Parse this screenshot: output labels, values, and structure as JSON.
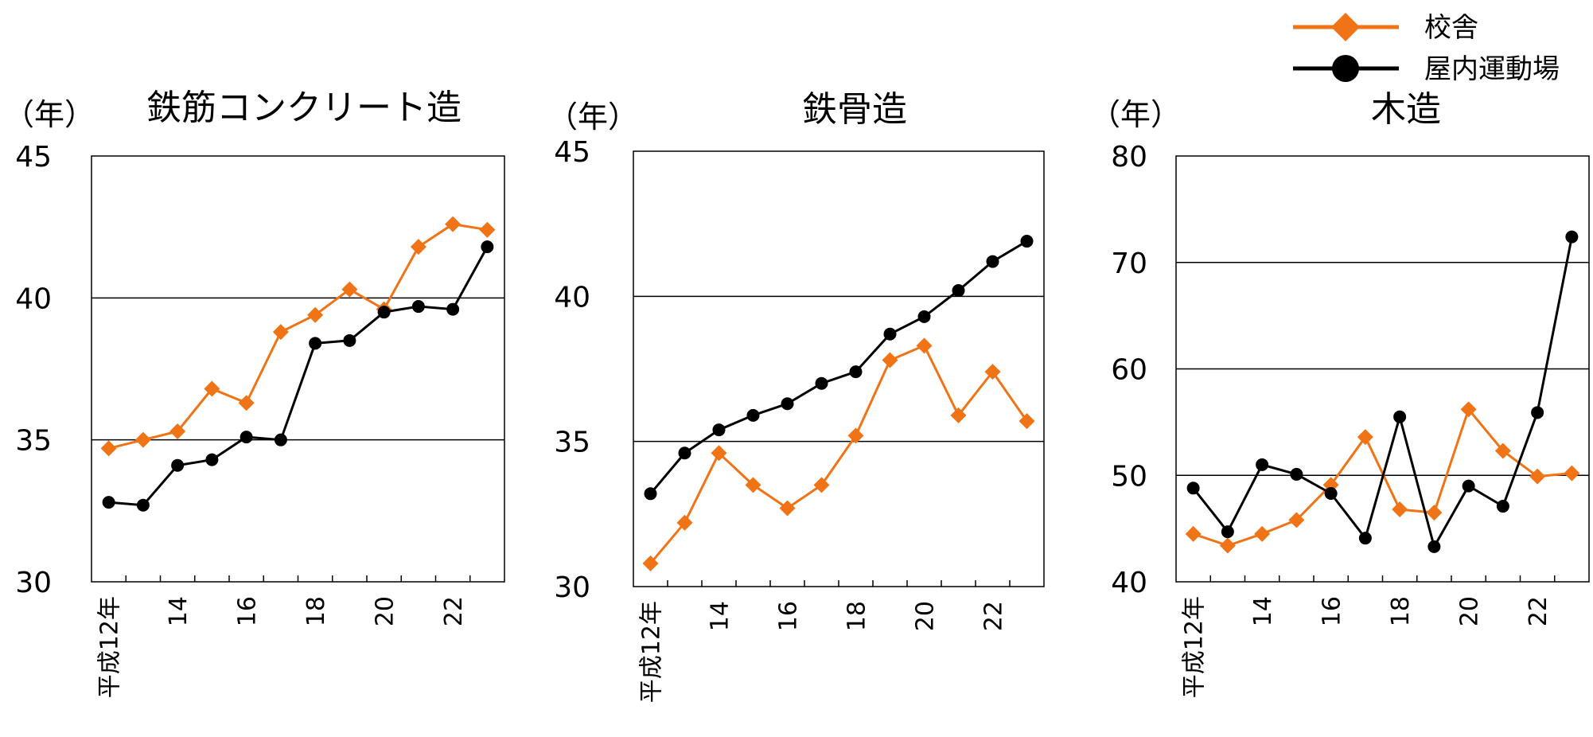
{
  "legend": {
    "position": "top-right",
    "items": [
      {
        "label": "校舎",
        "color": "#F07316",
        "marker": "diamond"
      },
      {
        "label": "屋内運動場",
        "color": "#000000",
        "marker": "circle"
      }
    ]
  },
  "chart_data": [
    {
      "type": "line",
      "title": "鉄筋コンクリート造",
      "ylabel": "（年）",
      "ylim": [
        30,
        45
      ],
      "yticks": [
        "30",
        "35",
        "40",
        "45"
      ],
      "x": [
        "平成12年",
        "13",
        "14",
        "15",
        "16",
        "17",
        "18",
        "19",
        "20",
        "21",
        "22",
        "23"
      ],
      "xtick_labels": [
        "平成12年",
        "",
        "14",
        "",
        "16",
        "",
        "18",
        "",
        "20",
        "",
        "22",
        ""
      ],
      "grid": true,
      "series": [
        {
          "name": "校舎",
          "color": "#F07316",
          "marker": "diamond",
          "values": [
            34.7,
            35.0,
            35.3,
            36.8,
            36.3,
            38.8,
            39.4,
            40.3,
            39.6,
            41.8,
            42.6,
            42.4
          ]
        },
        {
          "name": "屋内運動場",
          "color": "#000000",
          "marker": "circle",
          "values": [
            32.8,
            32.7,
            34.1,
            34.3,
            35.1,
            35.0,
            38.4,
            38.5,
            39.5,
            39.7,
            39.6,
            41.8
          ]
        }
      ]
    },
    {
      "type": "line",
      "title": "鉄骨造",
      "ylabel": "（年）",
      "ylim": [
        30,
        45
      ],
      "yticks": [
        "30",
        "35",
        "40",
        "45"
      ],
      "x": [
        "平成12年",
        "13",
        "14",
        "15",
        "16",
        "17",
        "18",
        "19",
        "20",
        "21",
        "22",
        "23"
      ],
      "xtick_labels": [
        "平成12年",
        "",
        "14",
        "",
        "16",
        "",
        "18",
        "",
        "20",
        "",
        "22",
        ""
      ],
      "grid": true,
      "series": [
        {
          "name": "校舎",
          "color": "#F07316",
          "marker": "diamond",
          "values": [
            30.8,
            32.2,
            34.6,
            33.5,
            32.7,
            33.5,
            35.2,
            37.8,
            38.3,
            35.9,
            37.4,
            35.7
          ]
        },
        {
          "name": "屋内運動場",
          "color": "#000000",
          "marker": "circle",
          "values": [
            33.2,
            34.6,
            35.4,
            35.9,
            36.3,
            37.0,
            37.4,
            38.7,
            39.3,
            40.2,
            41.2,
            41.9
          ]
        }
      ]
    },
    {
      "type": "line",
      "title": "木造",
      "ylabel": "（年）",
      "ylim": [
        40,
        80
      ],
      "yticks": [
        "40",
        "50",
        "60",
        "70",
        "80"
      ],
      "x": [
        "平成12年",
        "13",
        "14",
        "15",
        "16",
        "17",
        "18",
        "19",
        "20",
        "21",
        "22",
        "23"
      ],
      "xtick_labels": [
        "平成12年",
        "",
        "14",
        "",
        "16",
        "",
        "18",
        "",
        "20",
        "",
        "22",
        ""
      ],
      "grid": true,
      "series": [
        {
          "name": "校舎",
          "color": "#F07316",
          "marker": "diamond",
          "values": [
            44.5,
            43.4,
            44.5,
            45.8,
            49.1,
            53.6,
            46.8,
            46.5,
            56.2,
            52.3,
            49.9,
            50.2
          ]
        },
        {
          "name": "屋内運動場",
          "color": "#000000",
          "marker": "circle",
          "values": [
            48.8,
            44.7,
            51.0,
            50.1,
            48.3,
            44.1,
            55.5,
            43.3,
            49.0,
            47.1,
            55.9,
            72.4
          ]
        }
      ]
    }
  ]
}
